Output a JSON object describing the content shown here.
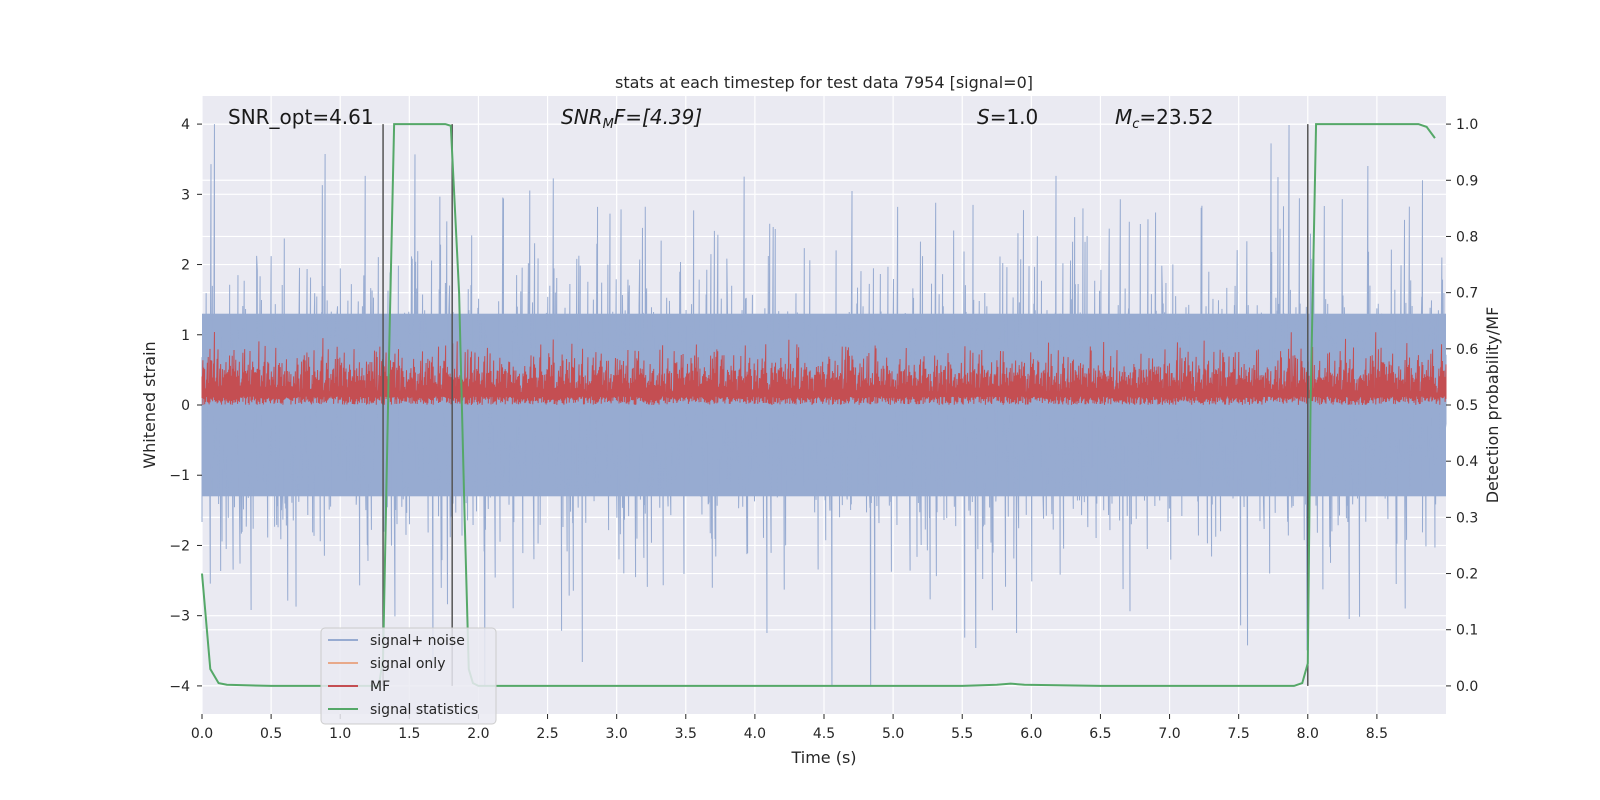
{
  "chart_data": {
    "type": "line",
    "title": "stats at each timestep for test data 7954 [signal=0]",
    "xlabel": "Time (s)",
    "ylabel": "Whitened strain",
    "ylabel_right": "Detection probability/MF",
    "xlim": [
      0.0,
      9.0
    ],
    "ylim": [
      -4.4,
      4.4
    ],
    "ylim_right": [
      -0.05,
      1.05
    ],
    "x_ticks": [
      "0.0",
      "0.5",
      "1.0",
      "1.5",
      "2.0",
      "2.5",
      "3.0",
      "3.5",
      "4.0",
      "4.5",
      "5.0",
      "5.5",
      "6.0",
      "6.5",
      "7.0",
      "7.5",
      "8.0",
      "8.5"
    ],
    "x_tick_values": [
      0.0,
      0.5,
      1.0,
      1.5,
      2.0,
      2.5,
      3.0,
      3.5,
      4.0,
      4.5,
      5.0,
      5.5,
      6.0,
      6.5,
      7.0,
      7.5,
      8.0,
      8.5
    ],
    "y_ticks": [
      "4",
      "3",
      "2",
      "1",
      "0",
      "−1",
      "−2",
      "−3",
      "−4"
    ],
    "y_tick_values": [
      4,
      3,
      2,
      1,
      0,
      -1,
      -2,
      -3,
      -4
    ],
    "y_ticks_right": [
      "1.0",
      "0.9",
      "0.8",
      "0.7",
      "0.6",
      "0.5",
      "0.4",
      "0.3",
      "0.2",
      "0.1",
      "0.0"
    ],
    "y_tick_values_right": [
      1.0,
      0.9,
      0.8,
      0.7,
      0.6,
      0.5,
      0.4,
      0.3,
      0.2,
      0.1,
      0.0
    ],
    "annotations": {
      "snr_opt": "SNR_opt=4.61",
      "snr_mf_main": "SNR",
      "snr_mf_sub": "M",
      "snr_mf_rest": "F=[4.39]",
      "s_label": "S",
      "s_value": "=1.0",
      "mc_main": "M",
      "mc_sub": "c",
      "mc_value": "=23.52"
    },
    "legend": {
      "placement": "lower-left",
      "entries": [
        "signal+ noise",
        "signal only",
        "MF",
        "signal statistics"
      ]
    },
    "colors": {
      "noise": "#97abd1",
      "signal_only": "#e8a98a",
      "mf": "#c44e52",
      "stats": "#55a868",
      "vlines": "#555555",
      "plot_bg": "#eaeaf2",
      "grid": "#ffffff"
    },
    "vlines_x": [
      1.31,
      1.81,
      8.0
    ],
    "noise_band": {
      "mean": 0.0,
      "std": 1.0,
      "max_abs_y": 4.0,
      "seed": 7954
    },
    "mf_band": {
      "min": 0.5,
      "max": 0.63,
      "axis": "right"
    },
    "series": [
      {
        "name": "signal statistics",
        "axis": "right",
        "x": [
          0.0,
          0.06,
          0.12,
          0.18,
          0.5,
          1.0,
          1.2,
          1.28,
          1.31,
          1.35,
          1.39,
          1.5,
          1.6,
          1.7,
          1.76,
          1.8,
          1.86,
          1.9,
          1.93,
          1.96,
          2.0,
          3.0,
          4.0,
          5.0,
          5.5,
          5.75,
          5.85,
          5.95,
          6.5,
          7.0,
          7.5,
          7.9,
          7.96,
          8.0,
          8.02,
          8.06,
          8.2,
          8.5,
          8.8,
          8.86,
          8.92
        ],
        "y": [
          0.2,
          0.03,
          0.005,
          0.002,
          0.0,
          0.0,
          0.0,
          0.0,
          0.05,
          0.55,
          1.0,
          1.0,
          1.0,
          1.0,
          1.0,
          0.997,
          0.7,
          0.3,
          0.03,
          0.005,
          0.0,
          0.0,
          0.0,
          0.0,
          0.0,
          0.002,
          0.004,
          0.002,
          0.0,
          0.0,
          0.0,
          0.0,
          0.005,
          0.04,
          0.5,
          1.0,
          1.0,
          1.0,
          1.0,
          0.995,
          0.975
        ]
      }
    ]
  }
}
